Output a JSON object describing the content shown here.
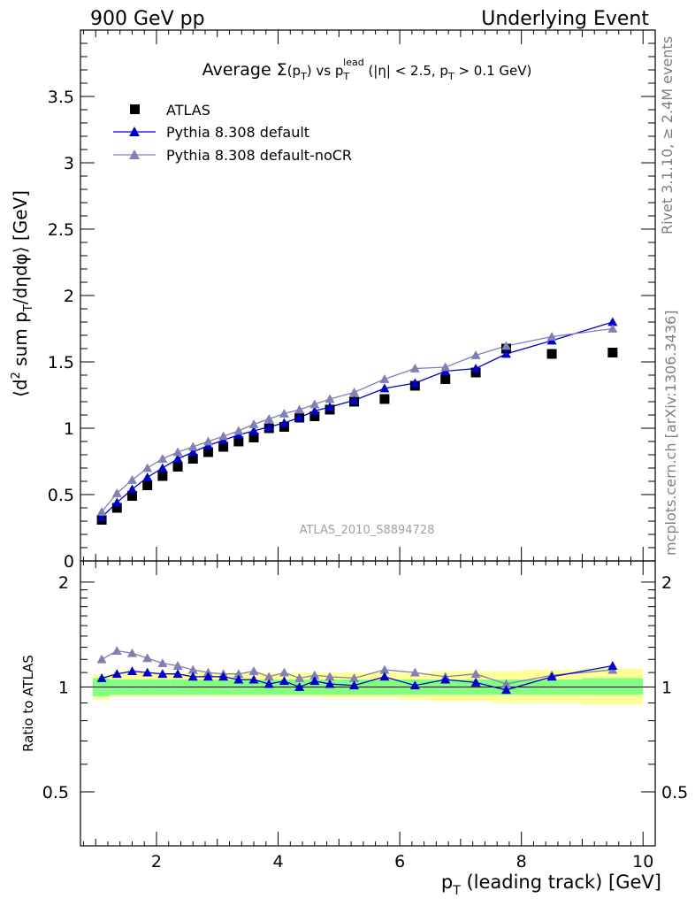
{
  "header": {
    "left": "900 GeV pp",
    "right": "Underlying Event"
  },
  "side_labels": {
    "rivet": "Rivet 3.1.10, ≥ 2.4M events",
    "mcplots": "mcplots.cern.ch [arXiv:1306.3436]"
  },
  "chart_data": [
    {
      "type": "scatter",
      "panel": "main",
      "title": "Average Σ(p_T) vs p_T^lead (|η| < 2.5, p_T > 0.1 GeV)",
      "xlabel": "p_T (leading track) [GeV]",
      "ylabel": "⟨d² sum p_T/dηdφ⟩ [GeV]",
      "watermark": "ATLAS_2010_S8894728",
      "xlim": [
        0.75,
        10.2
      ],
      "ylim": [
        0,
        4.0
      ],
      "xticks": [
        2,
        4,
        6,
        8,
        10
      ],
      "yticks": [
        0,
        0.5,
        1,
        1.5,
        2,
        2.5,
        3,
        3.5
      ],
      "legend_position": "top-left",
      "x": [
        1.1,
        1.35,
        1.6,
        1.85,
        2.1,
        2.35,
        2.6,
        2.85,
        3.1,
        3.35,
        3.6,
        3.85,
        4.1,
        4.35,
        4.6,
        4.85,
        5.25,
        5.75,
        6.25,
        6.75,
        7.25,
        7.75,
        8.5,
        9.5
      ],
      "series": [
        {
          "name": "ATLAS",
          "color": "#000000",
          "marker": "square",
          "values": [
            0.31,
            0.4,
            0.49,
            0.57,
            0.64,
            0.71,
            0.77,
            0.82,
            0.86,
            0.9,
            0.93,
            1.0,
            1.01,
            1.08,
            1.09,
            1.14,
            1.2,
            1.22,
            1.32,
            1.37,
            1.42,
            1.6,
            1.56,
            1.57
          ]
        },
        {
          "name": "Pythia 8.308 default",
          "color": "#0000cc",
          "marker": "triangle",
          "values": [
            0.33,
            0.44,
            0.54,
            0.63,
            0.7,
            0.77,
            0.82,
            0.87,
            0.91,
            0.95,
            0.98,
            1.01,
            1.04,
            1.08,
            1.13,
            1.16,
            1.21,
            1.3,
            1.34,
            1.43,
            1.45,
            1.56,
            1.66,
            1.8
          ]
        },
        {
          "name": "Pythia 8.308 default-noCR",
          "color": "#8080b3",
          "marker": "triangle",
          "values": [
            0.37,
            0.51,
            0.61,
            0.7,
            0.77,
            0.82,
            0.86,
            0.9,
            0.94,
            0.98,
            1.03,
            1.07,
            1.11,
            1.14,
            1.18,
            1.22,
            1.27,
            1.37,
            1.45,
            1.46,
            1.55,
            1.62,
            1.69,
            1.75
          ]
        }
      ]
    },
    {
      "type": "scatter",
      "panel": "ratio",
      "ylabel": "Ratio to ATLAS",
      "xlim": [
        0.75,
        10.2
      ],
      "ylim": [
        0.35,
        2.3
      ],
      "yticks": [
        0.5,
        1,
        2
      ],
      "reference_line": 1,
      "band_edges": [
        0.95,
        1.23,
        1.48,
        1.73,
        1.98,
        2.23,
        2.48,
        2.73,
        2.98,
        3.23,
        3.48,
        3.73,
        3.98,
        4.23,
        4.48,
        4.73,
        4.98,
        5.5,
        6.0,
        6.5,
        7.0,
        7.5,
        8.0,
        9.0,
        10.0
      ],
      "band_inner": [
        [
          0.94,
          1.06
        ],
        [
          0.95,
          1.05
        ],
        [
          0.95,
          1.05
        ],
        [
          0.95,
          1.05
        ],
        [
          0.95,
          1.05
        ],
        [
          0.95,
          1.05
        ],
        [
          0.95,
          1.05
        ],
        [
          0.95,
          1.05
        ],
        [
          0.95,
          1.05
        ],
        [
          0.95,
          1.05
        ],
        [
          0.95,
          1.05
        ],
        [
          0.95,
          1.05
        ],
        [
          0.95,
          1.05
        ],
        [
          0.95,
          1.05
        ],
        [
          0.95,
          1.05
        ],
        [
          0.95,
          1.05
        ],
        [
          0.95,
          1.05
        ],
        [
          0.95,
          1.05
        ],
        [
          0.95,
          1.05
        ],
        [
          0.95,
          1.05
        ],
        [
          0.95,
          1.05
        ],
        [
          0.95,
          1.05
        ],
        [
          0.95,
          1.05
        ],
        [
          0.95,
          1.06
        ]
      ],
      "band_outer": [
        [
          0.92,
          1.09
        ],
        [
          0.94,
          1.1
        ],
        [
          0.94,
          1.1
        ],
        [
          0.94,
          1.1
        ],
        [
          0.94,
          1.1
        ],
        [
          0.94,
          1.1
        ],
        [
          0.94,
          1.1
        ],
        [
          0.94,
          1.1
        ],
        [
          0.94,
          1.1
        ],
        [
          0.94,
          1.1
        ],
        [
          0.94,
          1.1
        ],
        [
          0.94,
          1.1
        ],
        [
          0.94,
          1.1
        ],
        [
          0.94,
          1.1
        ],
        [
          0.94,
          1.1
        ],
        [
          0.93,
          1.1
        ],
        [
          0.93,
          1.1
        ],
        [
          0.93,
          1.1
        ],
        [
          0.92,
          1.1
        ],
        [
          0.91,
          1.11
        ],
        [
          0.91,
          1.11
        ],
        [
          0.9,
          1.11
        ],
        [
          0.9,
          1.12
        ],
        [
          0.89,
          1.13
        ]
      ],
      "x": [
        1.1,
        1.35,
        1.6,
        1.85,
        2.1,
        2.35,
        2.6,
        2.85,
        3.1,
        3.35,
        3.6,
        3.85,
        4.1,
        4.35,
        4.6,
        4.85,
        5.25,
        5.75,
        6.25,
        6.75,
        7.25,
        7.75,
        8.5,
        9.5
      ],
      "series": [
        {
          "name": "Pythia 8.308 default",
          "color": "#0000cc",
          "values": [
            1.06,
            1.09,
            1.11,
            1.1,
            1.09,
            1.09,
            1.07,
            1.07,
            1.07,
            1.05,
            1.05,
            1.02,
            1.04,
            1.0,
            1.04,
            1.02,
            1.01,
            1.07,
            1.01,
            1.05,
            1.03,
            0.98,
            1.07,
            1.15
          ]
        },
        {
          "name": "Pythia 8.308 default-noCR",
          "color": "#8080b3",
          "values": [
            1.2,
            1.27,
            1.25,
            1.21,
            1.17,
            1.15,
            1.12,
            1.1,
            1.09,
            1.09,
            1.11,
            1.07,
            1.1,
            1.06,
            1.08,
            1.07,
            1.06,
            1.12,
            1.1,
            1.07,
            1.09,
            1.02,
            1.08,
            1.12
          ]
        }
      ]
    }
  ]
}
